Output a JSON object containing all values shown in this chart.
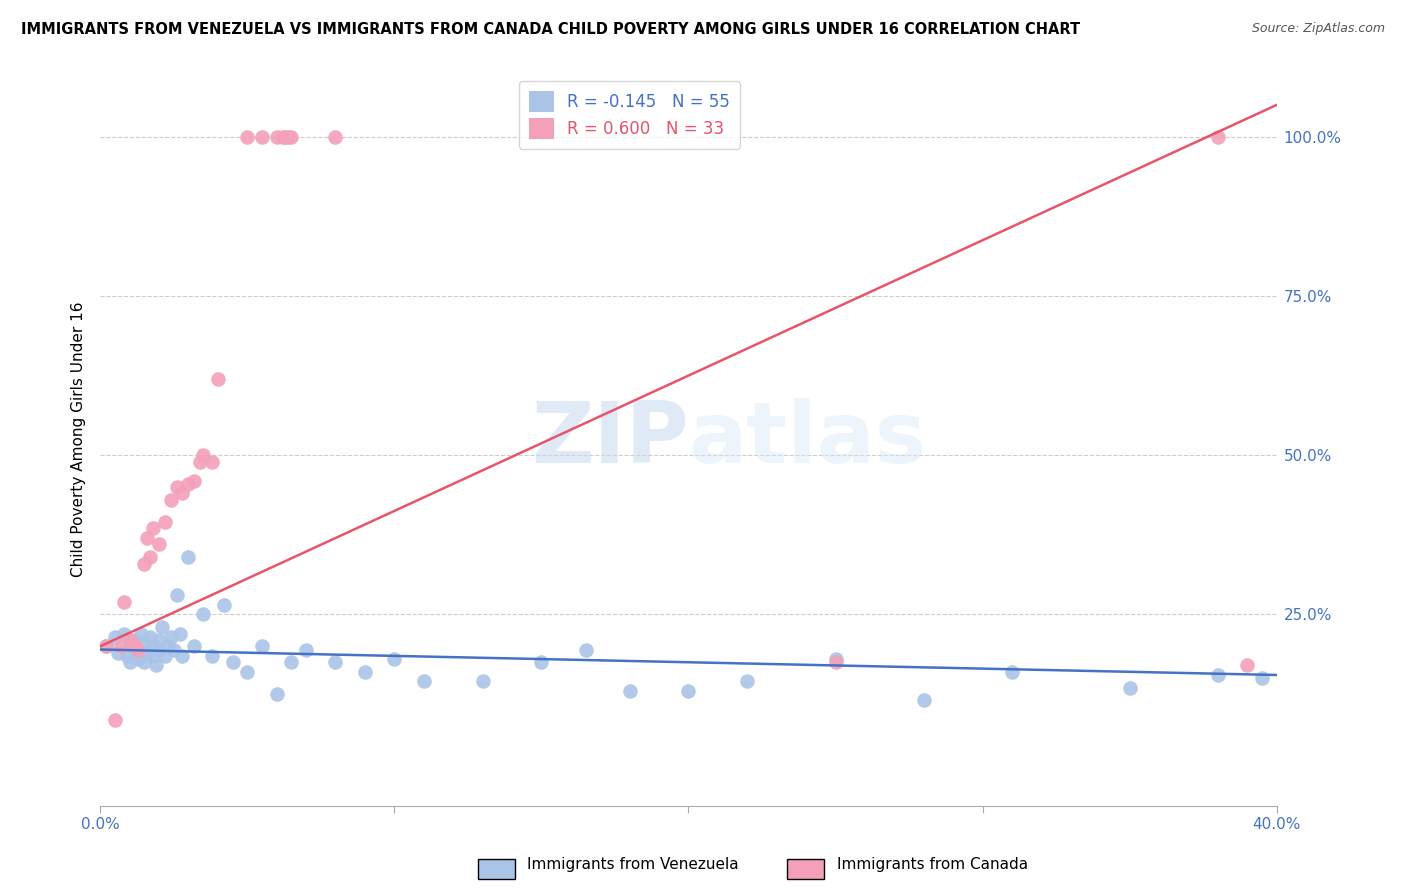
{
  "title": "IMMIGRANTS FROM VENEZUELA VS IMMIGRANTS FROM CANADA CHILD POVERTY AMONG GIRLS UNDER 16 CORRELATION CHART",
  "source": "Source: ZipAtlas.com",
  "ylabel": "Child Poverty Among Girls Under 16",
  "right_yticks": [
    "100.0%",
    "75.0%",
    "50.0%",
    "25.0%"
  ],
  "right_ytick_vals": [
    1.0,
    0.75,
    0.5,
    0.25
  ],
  "xlim": [
    0.0,
    0.4
  ],
  "ylim": [
    -0.05,
    1.1
  ],
  "venezuela_R": -0.145,
  "venezuela_N": 55,
  "canada_R": 0.6,
  "canada_N": 33,
  "venezuela_color": "#aac4e8",
  "canada_color": "#f4a0b8",
  "venezuela_line_color": "#4472c4",
  "canada_line_color": "#e8546a",
  "legend_label_venezuela": "Immigrants from Venezuela",
  "legend_label_canada": "Immigrants from Canada",
  "watermark_zip": "ZIP",
  "watermark_atlas": "atlas",
  "canada_line_x0": 0.0,
  "canada_line_y0": 0.2,
  "canada_line_x1": 0.4,
  "canada_line_y1": 1.05,
  "venezuela_line_x0": 0.0,
  "venezuela_line_y0": 0.195,
  "venezuela_line_x1": 0.4,
  "venezuela_line_y1": 0.155,
  "venezuela_x": [
    0.002,
    0.005,
    0.006,
    0.008,
    0.009,
    0.01,
    0.01,
    0.012,
    0.012,
    0.013,
    0.014,
    0.015,
    0.015,
    0.016,
    0.017,
    0.018,
    0.018,
    0.019,
    0.02,
    0.02,
    0.021,
    0.022,
    0.023,
    0.024,
    0.025,
    0.026,
    0.027,
    0.028,
    0.03,
    0.032,
    0.035,
    0.038,
    0.042,
    0.045,
    0.05,
    0.055,
    0.06,
    0.065,
    0.07,
    0.08,
    0.09,
    0.1,
    0.11,
    0.13,
    0.15,
    0.165,
    0.18,
    0.2,
    0.22,
    0.25,
    0.28,
    0.31,
    0.35,
    0.38,
    0.395
  ],
  "venezuela_y": [
    0.2,
    0.215,
    0.19,
    0.22,
    0.185,
    0.2,
    0.175,
    0.21,
    0.195,
    0.18,
    0.22,
    0.205,
    0.175,
    0.19,
    0.215,
    0.185,
    0.2,
    0.17,
    0.195,
    0.21,
    0.23,
    0.185,
    0.2,
    0.215,
    0.195,
    0.28,
    0.22,
    0.185,
    0.34,
    0.2,
    0.25,
    0.185,
    0.265,
    0.175,
    0.16,
    0.2,
    0.125,
    0.175,
    0.195,
    0.175,
    0.16,
    0.18,
    0.145,
    0.145,
    0.175,
    0.195,
    0.13,
    0.13,
    0.145,
    0.18,
    0.115,
    0.16,
    0.135,
    0.155,
    0.15
  ],
  "canada_x": [
    0.002,
    0.005,
    0.007,
    0.008,
    0.01,
    0.012,
    0.013,
    0.015,
    0.016,
    0.017,
    0.018,
    0.02,
    0.022,
    0.024,
    0.026,
    0.028,
    0.03,
    0.032,
    0.034,
    0.035,
    0.038,
    0.04,
    0.05,
    0.055,
    0.06,
    0.062,
    0.063,
    0.064,
    0.065,
    0.08,
    0.25,
    0.38,
    0.39
  ],
  "canada_y": [
    0.2,
    0.085,
    0.2,
    0.27,
    0.21,
    0.2,
    0.195,
    0.33,
    0.37,
    0.34,
    0.385,
    0.36,
    0.395,
    0.43,
    0.45,
    0.44,
    0.455,
    0.46,
    0.49,
    0.5,
    0.49,
    0.62,
    1.0,
    1.0,
    1.0,
    1.0,
    1.0,
    1.0,
    1.0,
    1.0,
    0.175,
    1.0,
    0.17
  ]
}
